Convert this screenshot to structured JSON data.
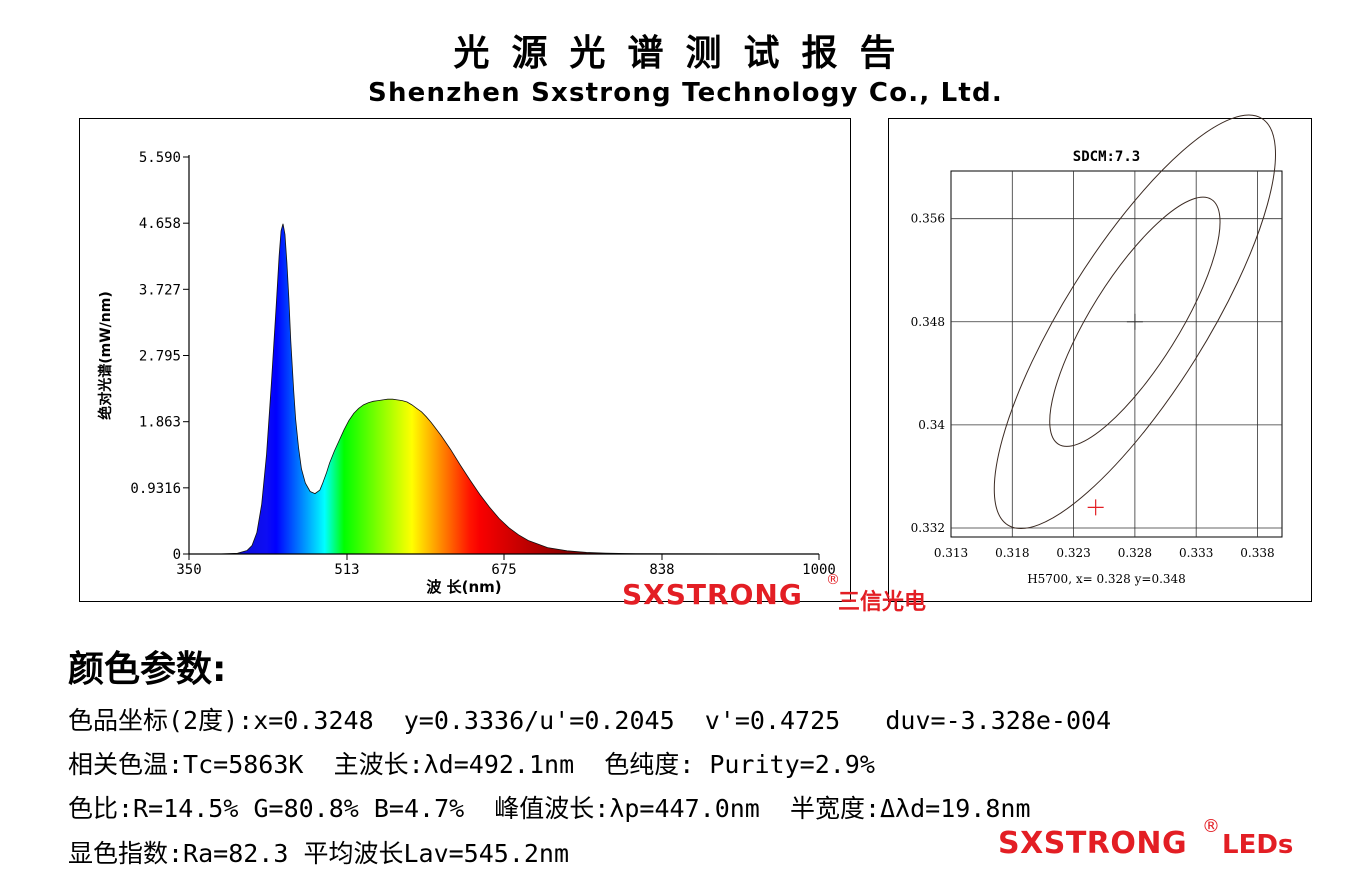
{
  "header": {
    "title_cn": "光源光谱测试报告",
    "title_en": "Shenzhen Sxstrong Technology Co., Ltd."
  },
  "chart_data": [
    {
      "type": "area",
      "title": "",
      "xlabel": "波 长(nm)",
      "ylabel": "绝对光谱(mW/nm)",
      "xlim": [
        350,
        1000
      ],
      "ylim": [
        0,
        5.59
      ],
      "x_ticks": [
        "350",
        "513",
        "675",
        "838",
        "1000"
      ],
      "y_ticks": [
        "0",
        "0.9316",
        "1.863",
        "2.795",
        "3.727",
        "4.658",
        "5.590"
      ],
      "fill": "visible-spectrum gradient by wavelength",
      "series": [
        {
          "x": [
            350,
            380,
            400,
            410,
            415,
            420,
            425,
            430,
            435,
            440,
            443,
            445,
            447,
            449,
            451,
            453,
            455,
            458,
            460,
            463,
            466,
            470,
            475,
            480,
            485,
            488,
            492,
            495,
            500,
            505,
            510,
            515,
            520,
            525,
            530,
            535,
            540,
            545,
            550,
            555,
            560,
            565,
            570,
            575,
            580,
            585,
            590,
            595,
            600,
            610,
            620,
            630,
            640,
            650,
            660,
            670,
            680,
            690,
            700,
            720,
            740,
            760,
            780,
            800,
            850,
            900,
            950,
            1000
          ],
          "y": [
            0,
            0,
            0.01,
            0.05,
            0.12,
            0.3,
            0.7,
            1.4,
            2.4,
            3.5,
            4.2,
            4.55,
            4.65,
            4.5,
            4.1,
            3.6,
            3.0,
            2.3,
            1.9,
            1.5,
            1.2,
            1.0,
            0.88,
            0.85,
            0.9,
            1.0,
            1.15,
            1.28,
            1.45,
            1.6,
            1.75,
            1.88,
            1.98,
            2.05,
            2.1,
            2.13,
            2.15,
            2.16,
            2.17,
            2.18,
            2.18,
            2.17,
            2.16,
            2.14,
            2.1,
            2.05,
            2.0,
            1.93,
            1.85,
            1.67,
            1.47,
            1.25,
            1.04,
            0.84,
            0.66,
            0.5,
            0.37,
            0.27,
            0.19,
            0.09,
            0.045,
            0.022,
            0.012,
            0.006,
            0.003,
            0.002,
            0.002,
            0.002
          ]
        }
      ]
    },
    {
      "type": "scatter",
      "title": "SDCM:7.3",
      "xlim": [
        0.313,
        0.34
      ],
      "ylim": [
        0.3313,
        0.3597
      ],
      "x_ticks": [
        "0.313",
        "0.318",
        "0.323",
        "0.328",
        "0.333",
        "0.338"
      ],
      "y_ticks": [
        "0.332",
        "0.34",
        "0.348",
        "0.356"
      ],
      "grid": true,
      "caption": "H5700, x= 0.328 y=0.348",
      "target": {
        "x": 0.328,
        "y": 0.348
      },
      "measured": {
        "x": 0.3248,
        "y": 0.3336
      },
      "ellipses": [
        {
          "cx": 0.328,
          "cy": 0.348,
          "rx": 0.0036,
          "ry": 0.0112,
          "angle": 32
        },
        {
          "cx": 0.328,
          "cy": 0.348,
          "rx": 0.0058,
          "ry": 0.0186,
          "angle": 32
        }
      ],
      "colors": {
        "ellipse": "#3b2a22",
        "measured": "#e31e24",
        "target": "#333333"
      }
    }
  ],
  "brand": {
    "name": "SXSTRONG",
    "reg": "®",
    "name_cn": "三信光电",
    "leds": "LEDs"
  },
  "params": {
    "title": "颜色参数:",
    "line1": "色品坐标(2度):x=0.3248  y=0.3336/u'=0.2045  v'=0.4725   duv=-3.328e-004",
    "line2": "相关色温:Tc=5863K  主波长:λd=492.1nm  色纯度: Purity=2.9%",
    "line3": "色比:R=14.5% G=80.8% B=4.7%  峰值波长:λp=447.0nm  半宽度:Δλd=19.8nm",
    "line4": "显色指数:Ra=82.3 平均波长Lav=545.2nm"
  }
}
